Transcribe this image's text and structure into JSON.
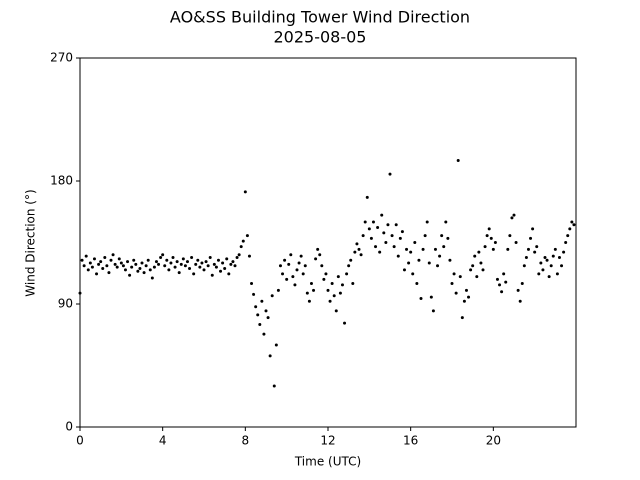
{
  "chart_data": {
    "type": "scatter",
    "title": "AO&SS Building Tower Wind Direction",
    "subtitle": "2025-08-05",
    "x_label": "Time (UTC)",
    "y_label": "Wind Direction (°)",
    "color": "#000000",
    "xlim": [
      0,
      24
    ],
    "xticks": [
      0,
      4,
      8,
      12,
      16,
      20
    ],
    "ylim": [
      0,
      270
    ],
    "yticks": [
      0,
      90,
      180,
      270
    ],
    "x": [
      0.0,
      0.1,
      0.2,
      0.3,
      0.4,
      0.5,
      0.6,
      0.7,
      0.8,
      0.9,
      1.0,
      1.1,
      1.2,
      1.3,
      1.4,
      1.5,
      1.6,
      1.7,
      1.8,
      1.9,
      2.0,
      2.1,
      2.2,
      2.3,
      2.4,
      2.5,
      2.6,
      2.7,
      2.8,
      2.9,
      3.0,
      3.1,
      3.2,
      3.3,
      3.4,
      3.5,
      3.6,
      3.7,
      3.8,
      3.9,
      4.0,
      4.1,
      4.2,
      4.3,
      4.4,
      4.5,
      4.6,
      4.7,
      4.8,
      4.9,
      5.0,
      5.1,
      5.2,
      5.3,
      5.4,
      5.5,
      5.6,
      5.7,
      5.8,
      5.9,
      6.0,
      6.1,
      6.2,
      6.3,
      6.4,
      6.5,
      6.6,
      6.7,
      6.8,
      6.9,
      7.0,
      7.1,
      7.2,
      7.3,
      7.4,
      7.5,
      7.6,
      7.7,
      7.8,
      7.9,
      8.0,
      8.1,
      8.2,
      8.3,
      8.4,
      8.5,
      8.6,
      8.7,
      8.8,
      8.9,
      9.0,
      9.1,
      9.2,
      9.3,
      9.4,
      9.5,
      9.6,
      9.7,
      9.8,
      9.9,
      10.0,
      10.1,
      10.2,
      10.3,
      10.4,
      10.5,
      10.6,
      10.7,
      10.8,
      10.9,
      11.0,
      11.1,
      11.2,
      11.3,
      11.4,
      11.5,
      11.6,
      11.7,
      11.8,
      11.9,
      12.0,
      12.1,
      12.2,
      12.3,
      12.4,
      12.5,
      12.6,
      12.7,
      12.8,
      12.9,
      13.0,
      13.1,
      13.2,
      13.3,
      13.4,
      13.5,
      13.6,
      13.7,
      13.8,
      13.9,
      14.0,
      14.1,
      14.2,
      14.3,
      14.4,
      14.5,
      14.6,
      14.7,
      14.8,
      14.9,
      15.0,
      15.1,
      15.2,
      15.3,
      15.4,
      15.5,
      15.6,
      15.7,
      15.8,
      15.9,
      16.0,
      16.1,
      16.2,
      16.3,
      16.4,
      16.5,
      16.6,
      16.7,
      16.8,
      16.9,
      17.0,
      17.1,
      17.2,
      17.3,
      17.4,
      17.5,
      17.6,
      17.7,
      17.8,
      17.9,
      18.0,
      18.1,
      18.2,
      18.3,
      18.4,
      18.5,
      18.6,
      18.7,
      18.8,
      18.9,
      19.0,
      19.1,
      19.2,
      19.3,
      19.4,
      19.5,
      19.6,
      19.7,
      19.8,
      19.9,
      20.0,
      20.1,
      20.2,
      20.3,
      20.4,
      20.5,
      20.6,
      20.7,
      20.8,
      20.9,
      21.0,
      21.1,
      21.2,
      21.3,
      21.4,
      21.5,
      21.6,
      21.7,
      21.8,
      21.9,
      22.0,
      22.1,
      22.2,
      22.3,
      22.4,
      22.5,
      22.6,
      22.7,
      22.8,
      22.9,
      23.0,
      23.1,
      23.2,
      23.3,
      23.4,
      23.5,
      23.6,
      23.7,
      23.8,
      23.9
    ],
    "values": [
      98,
      122,
      118,
      125,
      115,
      120,
      117,
      123,
      112,
      119,
      121,
      116,
      124,
      118,
      113,
      122,
      126,
      119,
      117,
      123,
      120,
      118,
      115,
      121,
      111,
      117,
      122,
      119,
      114,
      116,
      120,
      113,
      118,
      122,
      115,
      109,
      117,
      121,
      119,
      124,
      126,
      118,
      122,
      115,
      120,
      124,
      117,
      121,
      113,
      119,
      123,
      118,
      121,
      116,
      124,
      112,
      119,
      122,
      117,
      120,
      115,
      121,
      118,
      124,
      111,
      119,
      117,
      122,
      114,
      120,
      116,
      123,
      112,
      119,
      121,
      118,
      124,
      126,
      132,
      136,
      172,
      140,
      125,
      105,
      97,
      88,
      82,
      75,
      92,
      68,
      85,
      80,
      52,
      96,
      30,
      60,
      100,
      118,
      112,
      122,
      108,
      119,
      126,
      110,
      104,
      115,
      120,
      125,
      112,
      118,
      98,
      92,
      105,
      100,
      123,
      130,
      126,
      118,
      108,
      112,
      100,
      92,
      105,
      96,
      85,
      110,
      98,
      104,
      76,
      112,
      118,
      122,
      105,
      128,
      134,
      130,
      126,
      140,
      150,
      168,
      145,
      138,
      150,
      132,
      146,
      128,
      155,
      142,
      135,
      148,
      185,
      140,
      132,
      148,
      125,
      138,
      143,
      115,
      130,
      120,
      128,
      112,
      135,
      105,
      122,
      94,
      130,
      140,
      150,
      120,
      95,
      85,
      130,
      118,
      125,
      140,
      132,
      150,
      138,
      122,
      105,
      112,
      98,
      195,
      110,
      80,
      92,
      100,
      95,
      115,
      118,
      125,
      110,
      128,
      120,
      115,
      132,
      140,
      145,
      138,
      130,
      135,
      108,
      104,
      99,
      112,
      106,
      130,
      140,
      153,
      155,
      135,
      100,
      92,
      105,
      118,
      124,
      130,
      138,
      145,
      128,
      132,
      112,
      120,
      115,
      124,
      122,
      110,
      118,
      125,
      130,
      112,
      124,
      118,
      128,
      135,
      140,
      145,
      150,
      148
    ]
  }
}
